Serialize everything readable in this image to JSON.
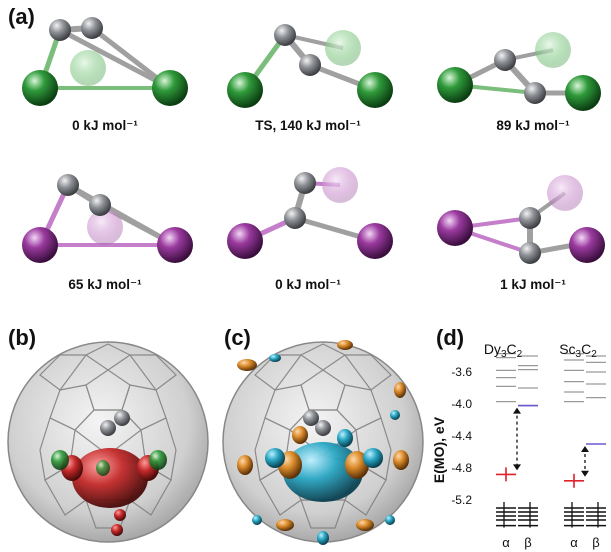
{
  "figure": {
    "panels": {
      "a": "(a)",
      "b": "(b)",
      "c": "(c)",
      "d": "(d)"
    },
    "panel_a_energies": [
      "0 kJ mol⁻¹",
      "TS, 140 kJ mol⁻¹",
      "89 kJ mol⁻¹",
      "65 kJ mol⁻¹",
      "0 kJ mol⁻¹",
      "1 kJ mol⁻¹"
    ],
    "colors": {
      "carbon": "#8a8d92",
      "dy": "#2f9a3a",
      "sc": "#9a3a9f",
      "cage": "#c8c8c8",
      "orbital_red": "#c42a2a",
      "orbital_cyan": "#2aa7c4",
      "orbital_orange": "#d98a2a",
      "luMO": "#6a5acd",
      "homo_marker": "#e0202a"
    }
  },
  "chart_data": {
    "type": "energy-level diagram",
    "ylabel": "E(MO), eV",
    "yticks": [
      "-3.6",
      "-4.0",
      "-4.4",
      "-4.8",
      "-5.2"
    ],
    "columns": [
      {
        "name": "Dy3C2",
        "label_main": "Dy",
        "sub1": "3",
        "mid": "C",
        "sub2": "2",
        "spins": [
          "α",
          "β"
        ]
      },
      {
        "name": "Sc3C2",
        "label_main": "Sc",
        "sub1": "3",
        "mid": "C",
        "sub2": "2",
        "spins": [
          "α",
          "β"
        ]
      }
    ],
    "levels": {
      "Dy3C2": {
        "alpha_unocc": [
          -3.37,
          -3.42,
          -3.58,
          -3.67,
          -3.78,
          -3.97
        ],
        "beta_unocc": [
          -3.4,
          -3.52,
          -3.57,
          -3.8,
          -4.02
        ],
        "alpha_singly": -4.88,
        "beta_lumo": -4.02,
        "alpha_occ": [
          -5.3,
          -5.35,
          -5.4,
          -5.45,
          -5.52
        ],
        "beta_occ": [
          -5.3,
          -5.35,
          -5.4,
          -5.45,
          -5.52
        ]
      },
      "Sc3C2": {
        "alpha_unocc": [
          -3.37,
          -3.45,
          -3.58,
          -3.72,
          -3.85,
          -3.97
        ],
        "beta_unocc": [
          -3.4,
          -3.48,
          -3.6,
          -3.75,
          -3.92
        ],
        "alpha_singly": -4.96,
        "beta_lumo": -4.5,
        "alpha_occ": [
          -5.3,
          -5.35,
          -5.4,
          -5.45,
          -5.52
        ],
        "beta_occ": [
          -5.3,
          -5.35,
          -5.4,
          -5.45,
          -5.52
        ]
      }
    },
    "ylim": [
      -5.55,
      -3.3
    ]
  }
}
